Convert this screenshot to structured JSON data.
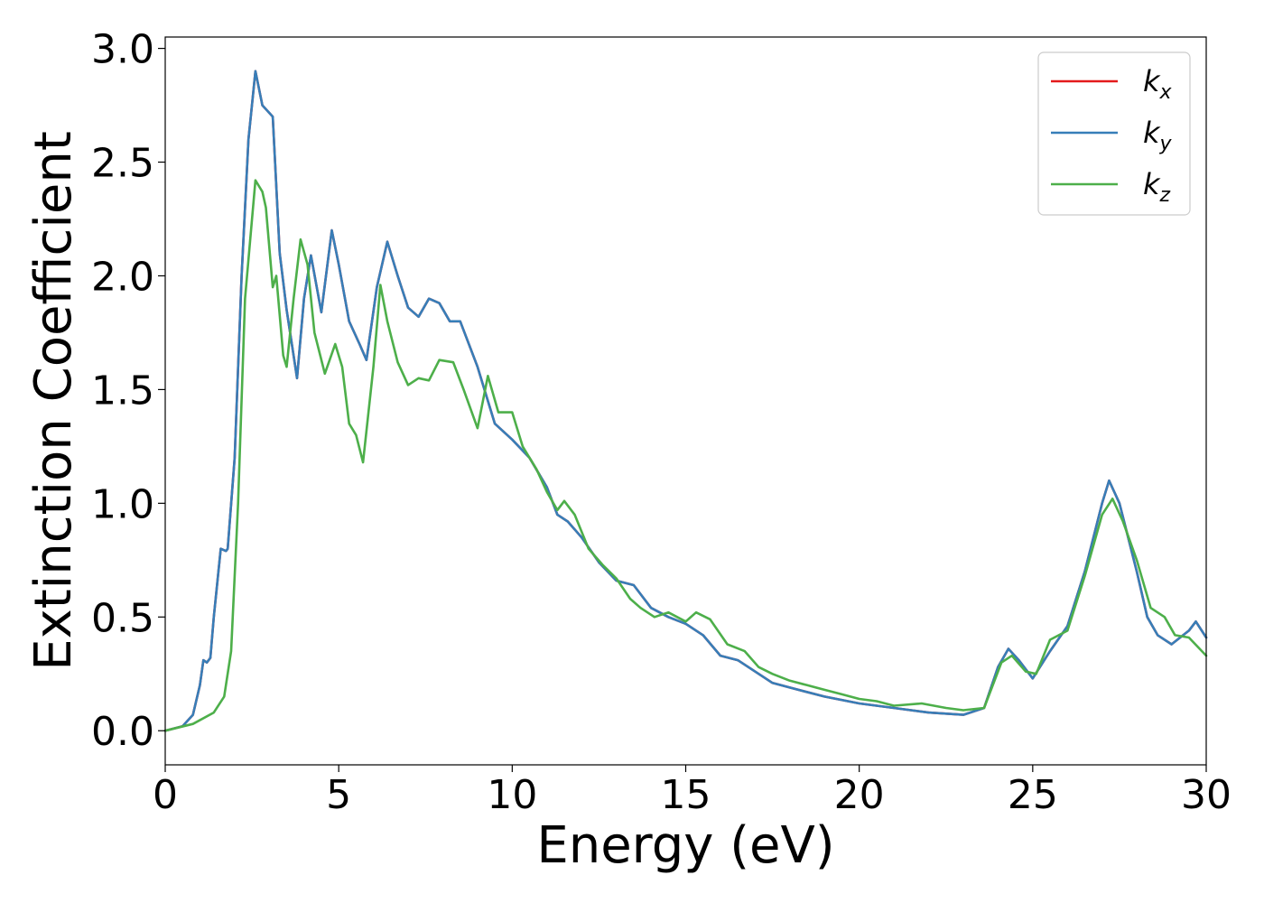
{
  "chart_data": {
    "type": "line",
    "xlabel": "Energy (eV)",
    "ylabel": "Extinction Coefficient",
    "xlim": [
      0,
      30
    ],
    "ylim": [
      -0.15,
      3.05
    ],
    "xticks": [
      0,
      5,
      10,
      15,
      20,
      25,
      30
    ],
    "yticks": [
      0.0,
      0.5,
      1.0,
      1.5,
      2.0,
      2.5,
      3.0
    ],
    "xtick_labels": [
      "0",
      "5",
      "10",
      "15",
      "20",
      "25",
      "30"
    ],
    "ytick_labels": [
      "0.0",
      "0.5",
      "1.0",
      "1.5",
      "2.0",
      "2.5",
      "3.0"
    ],
    "grid": false,
    "legend_position": "top-right",
    "series": [
      {
        "name": "k_x",
        "legend_main": "k",
        "legend_sub": "x",
        "color": "#e41a1c",
        "points": [
          [
            0,
            0.0
          ],
          [
            0.5,
            0.02
          ],
          [
            0.8,
            0.07
          ],
          [
            1.0,
            0.2
          ],
          [
            1.1,
            0.31
          ],
          [
            1.2,
            0.3
          ],
          [
            1.3,
            0.32
          ],
          [
            1.4,
            0.5
          ],
          [
            1.6,
            0.8
          ],
          [
            1.75,
            0.79
          ],
          [
            1.8,
            0.8
          ],
          [
            2.0,
            1.2
          ],
          [
            2.2,
            2.0
          ],
          [
            2.4,
            2.6
          ],
          [
            2.6,
            2.9
          ],
          [
            2.8,
            2.75
          ],
          [
            3.1,
            2.7
          ],
          [
            3.3,
            2.1
          ],
          [
            3.5,
            1.85
          ],
          [
            3.8,
            1.55
          ],
          [
            4.0,
            1.9
          ],
          [
            4.2,
            2.09
          ],
          [
            4.5,
            1.84
          ],
          [
            4.8,
            2.2
          ],
          [
            5.0,
            2.05
          ],
          [
            5.3,
            1.8
          ],
          [
            5.6,
            1.7
          ],
          [
            5.8,
            1.63
          ],
          [
            6.1,
            1.95
          ],
          [
            6.4,
            2.15
          ],
          [
            6.7,
            2.0
          ],
          [
            7.0,
            1.86
          ],
          [
            7.3,
            1.82
          ],
          [
            7.6,
            1.9
          ],
          [
            7.9,
            1.88
          ],
          [
            8.2,
            1.8
          ],
          [
            8.5,
            1.8
          ],
          [
            9.0,
            1.6
          ],
          [
            9.5,
            1.35
          ],
          [
            10.0,
            1.28
          ],
          [
            10.5,
            1.2
          ],
          [
            11.0,
            1.07
          ],
          [
            11.3,
            0.95
          ],
          [
            11.6,
            0.92
          ],
          [
            12.0,
            0.85
          ],
          [
            12.5,
            0.74
          ],
          [
            13.0,
            0.66
          ],
          [
            13.5,
            0.64
          ],
          [
            14.0,
            0.54
          ],
          [
            14.5,
            0.5
          ],
          [
            15.0,
            0.47
          ],
          [
            15.5,
            0.42
          ],
          [
            16.0,
            0.33
          ],
          [
            16.5,
            0.31
          ],
          [
            17.0,
            0.26
          ],
          [
            17.5,
            0.21
          ],
          [
            18.0,
            0.19
          ],
          [
            19.0,
            0.15
          ],
          [
            20.0,
            0.12
          ],
          [
            21.0,
            0.1
          ],
          [
            22.0,
            0.08
          ],
          [
            23.0,
            0.07
          ],
          [
            23.6,
            0.1
          ],
          [
            24.0,
            0.28
          ],
          [
            24.3,
            0.36
          ],
          [
            24.6,
            0.31
          ],
          [
            25.0,
            0.23
          ],
          [
            25.5,
            0.35
          ],
          [
            26.0,
            0.46
          ],
          [
            26.5,
            0.7
          ],
          [
            27.0,
            1.0
          ],
          [
            27.2,
            1.1
          ],
          [
            27.5,
            1.0
          ],
          [
            28.0,
            0.7
          ],
          [
            28.3,
            0.5
          ],
          [
            28.6,
            0.42
          ],
          [
            29.0,
            0.38
          ],
          [
            29.5,
            0.44
          ],
          [
            29.7,
            0.48
          ],
          [
            30.0,
            0.41
          ]
        ]
      },
      {
        "name": "k_y",
        "legend_main": "k",
        "legend_sub": "y",
        "color": "#377eb8",
        "points": [
          [
            0,
            0.0
          ],
          [
            0.5,
            0.02
          ],
          [
            0.8,
            0.07
          ],
          [
            1.0,
            0.2
          ],
          [
            1.1,
            0.31
          ],
          [
            1.2,
            0.3
          ],
          [
            1.3,
            0.32
          ],
          [
            1.4,
            0.5
          ],
          [
            1.6,
            0.8
          ],
          [
            1.75,
            0.79
          ],
          [
            1.8,
            0.8
          ],
          [
            2.0,
            1.2
          ],
          [
            2.2,
            2.0
          ],
          [
            2.4,
            2.6
          ],
          [
            2.6,
            2.9
          ],
          [
            2.8,
            2.75
          ],
          [
            3.1,
            2.7
          ],
          [
            3.3,
            2.1
          ],
          [
            3.5,
            1.85
          ],
          [
            3.8,
            1.55
          ],
          [
            4.0,
            1.9
          ],
          [
            4.2,
            2.09
          ],
          [
            4.5,
            1.84
          ],
          [
            4.8,
            2.2
          ],
          [
            5.0,
            2.05
          ],
          [
            5.3,
            1.8
          ],
          [
            5.6,
            1.7
          ],
          [
            5.8,
            1.63
          ],
          [
            6.1,
            1.95
          ],
          [
            6.4,
            2.15
          ],
          [
            6.7,
            2.0
          ],
          [
            7.0,
            1.86
          ],
          [
            7.3,
            1.82
          ],
          [
            7.6,
            1.9
          ],
          [
            7.9,
            1.88
          ],
          [
            8.2,
            1.8
          ],
          [
            8.5,
            1.8
          ],
          [
            9.0,
            1.6
          ],
          [
            9.5,
            1.35
          ],
          [
            10.0,
            1.28
          ],
          [
            10.5,
            1.2
          ],
          [
            11.0,
            1.07
          ],
          [
            11.3,
            0.95
          ],
          [
            11.6,
            0.92
          ],
          [
            12.0,
            0.85
          ],
          [
            12.5,
            0.74
          ],
          [
            13.0,
            0.66
          ],
          [
            13.5,
            0.64
          ],
          [
            14.0,
            0.54
          ],
          [
            14.5,
            0.5
          ],
          [
            15.0,
            0.47
          ],
          [
            15.5,
            0.42
          ],
          [
            16.0,
            0.33
          ],
          [
            16.5,
            0.31
          ],
          [
            17.0,
            0.26
          ],
          [
            17.5,
            0.21
          ],
          [
            18.0,
            0.19
          ],
          [
            19.0,
            0.15
          ],
          [
            20.0,
            0.12
          ],
          [
            21.0,
            0.1
          ],
          [
            22.0,
            0.08
          ],
          [
            23.0,
            0.07
          ],
          [
            23.6,
            0.1
          ],
          [
            24.0,
            0.28
          ],
          [
            24.3,
            0.36
          ],
          [
            24.6,
            0.31
          ],
          [
            25.0,
            0.23
          ],
          [
            25.5,
            0.35
          ],
          [
            26.0,
            0.46
          ],
          [
            26.5,
            0.7
          ],
          [
            27.0,
            1.0
          ],
          [
            27.2,
            1.1
          ],
          [
            27.5,
            1.0
          ],
          [
            28.0,
            0.7
          ],
          [
            28.3,
            0.5
          ],
          [
            28.6,
            0.42
          ],
          [
            29.0,
            0.38
          ],
          [
            29.5,
            0.44
          ],
          [
            29.7,
            0.48
          ],
          [
            30.0,
            0.41
          ]
        ]
      },
      {
        "name": "k_z",
        "legend_main": "k",
        "legend_sub": "z",
        "color": "#4daf4a",
        "points": [
          [
            0,
            0.0
          ],
          [
            0.8,
            0.03
          ],
          [
            1.4,
            0.08
          ],
          [
            1.7,
            0.15
          ],
          [
            1.9,
            0.35
          ],
          [
            2.1,
            1.0
          ],
          [
            2.3,
            1.9
          ],
          [
            2.6,
            2.42
          ],
          [
            2.8,
            2.37
          ],
          [
            2.9,
            2.3
          ],
          [
            3.1,
            1.95
          ],
          [
            3.2,
            2.0
          ],
          [
            3.4,
            1.65
          ],
          [
            3.5,
            1.6
          ],
          [
            3.7,
            1.9
          ],
          [
            3.9,
            2.16
          ],
          [
            4.1,
            2.05
          ],
          [
            4.3,
            1.75
          ],
          [
            4.6,
            1.57
          ],
          [
            4.9,
            1.7
          ],
          [
            5.1,
            1.6
          ],
          [
            5.3,
            1.35
          ],
          [
            5.5,
            1.3
          ],
          [
            5.7,
            1.18
          ],
          [
            6.0,
            1.6
          ],
          [
            6.2,
            1.96
          ],
          [
            6.4,
            1.8
          ],
          [
            6.7,
            1.62
          ],
          [
            7.0,
            1.52
          ],
          [
            7.3,
            1.55
          ],
          [
            7.6,
            1.54
          ],
          [
            7.9,
            1.63
          ],
          [
            8.3,
            1.62
          ],
          [
            8.6,
            1.5
          ],
          [
            9.0,
            1.33
          ],
          [
            9.3,
            1.56
          ],
          [
            9.6,
            1.4
          ],
          [
            10.0,
            1.4
          ],
          [
            10.3,
            1.25
          ],
          [
            10.7,
            1.15
          ],
          [
            11.0,
            1.05
          ],
          [
            11.3,
            0.97
          ],
          [
            11.5,
            1.01
          ],
          [
            11.8,
            0.95
          ],
          [
            12.2,
            0.8
          ],
          [
            12.6,
            0.73
          ],
          [
            13.0,
            0.67
          ],
          [
            13.4,
            0.58
          ],
          [
            13.7,
            0.54
          ],
          [
            14.1,
            0.5
          ],
          [
            14.5,
            0.52
          ],
          [
            15.0,
            0.48
          ],
          [
            15.3,
            0.52
          ],
          [
            15.7,
            0.49
          ],
          [
            16.2,
            0.38
          ],
          [
            16.7,
            0.35
          ],
          [
            17.1,
            0.28
          ],
          [
            17.5,
            0.25
          ],
          [
            18.0,
            0.22
          ],
          [
            18.5,
            0.2
          ],
          [
            19.0,
            0.18
          ],
          [
            19.5,
            0.16
          ],
          [
            20.0,
            0.14
          ],
          [
            20.5,
            0.13
          ],
          [
            21.0,
            0.11
          ],
          [
            21.8,
            0.12
          ],
          [
            22.5,
            0.1
          ],
          [
            23.0,
            0.09
          ],
          [
            23.6,
            0.1
          ],
          [
            24.1,
            0.3
          ],
          [
            24.4,
            0.33
          ],
          [
            24.8,
            0.26
          ],
          [
            25.1,
            0.25
          ],
          [
            25.5,
            0.4
          ],
          [
            26.0,
            0.44
          ],
          [
            26.5,
            0.68
          ],
          [
            27.0,
            0.95
          ],
          [
            27.3,
            1.02
          ],
          [
            27.6,
            0.92
          ],
          [
            28.0,
            0.75
          ],
          [
            28.4,
            0.54
          ],
          [
            28.8,
            0.5
          ],
          [
            29.1,
            0.42
          ],
          [
            29.5,
            0.41
          ],
          [
            30.0,
            0.33
          ]
        ]
      }
    ]
  }
}
